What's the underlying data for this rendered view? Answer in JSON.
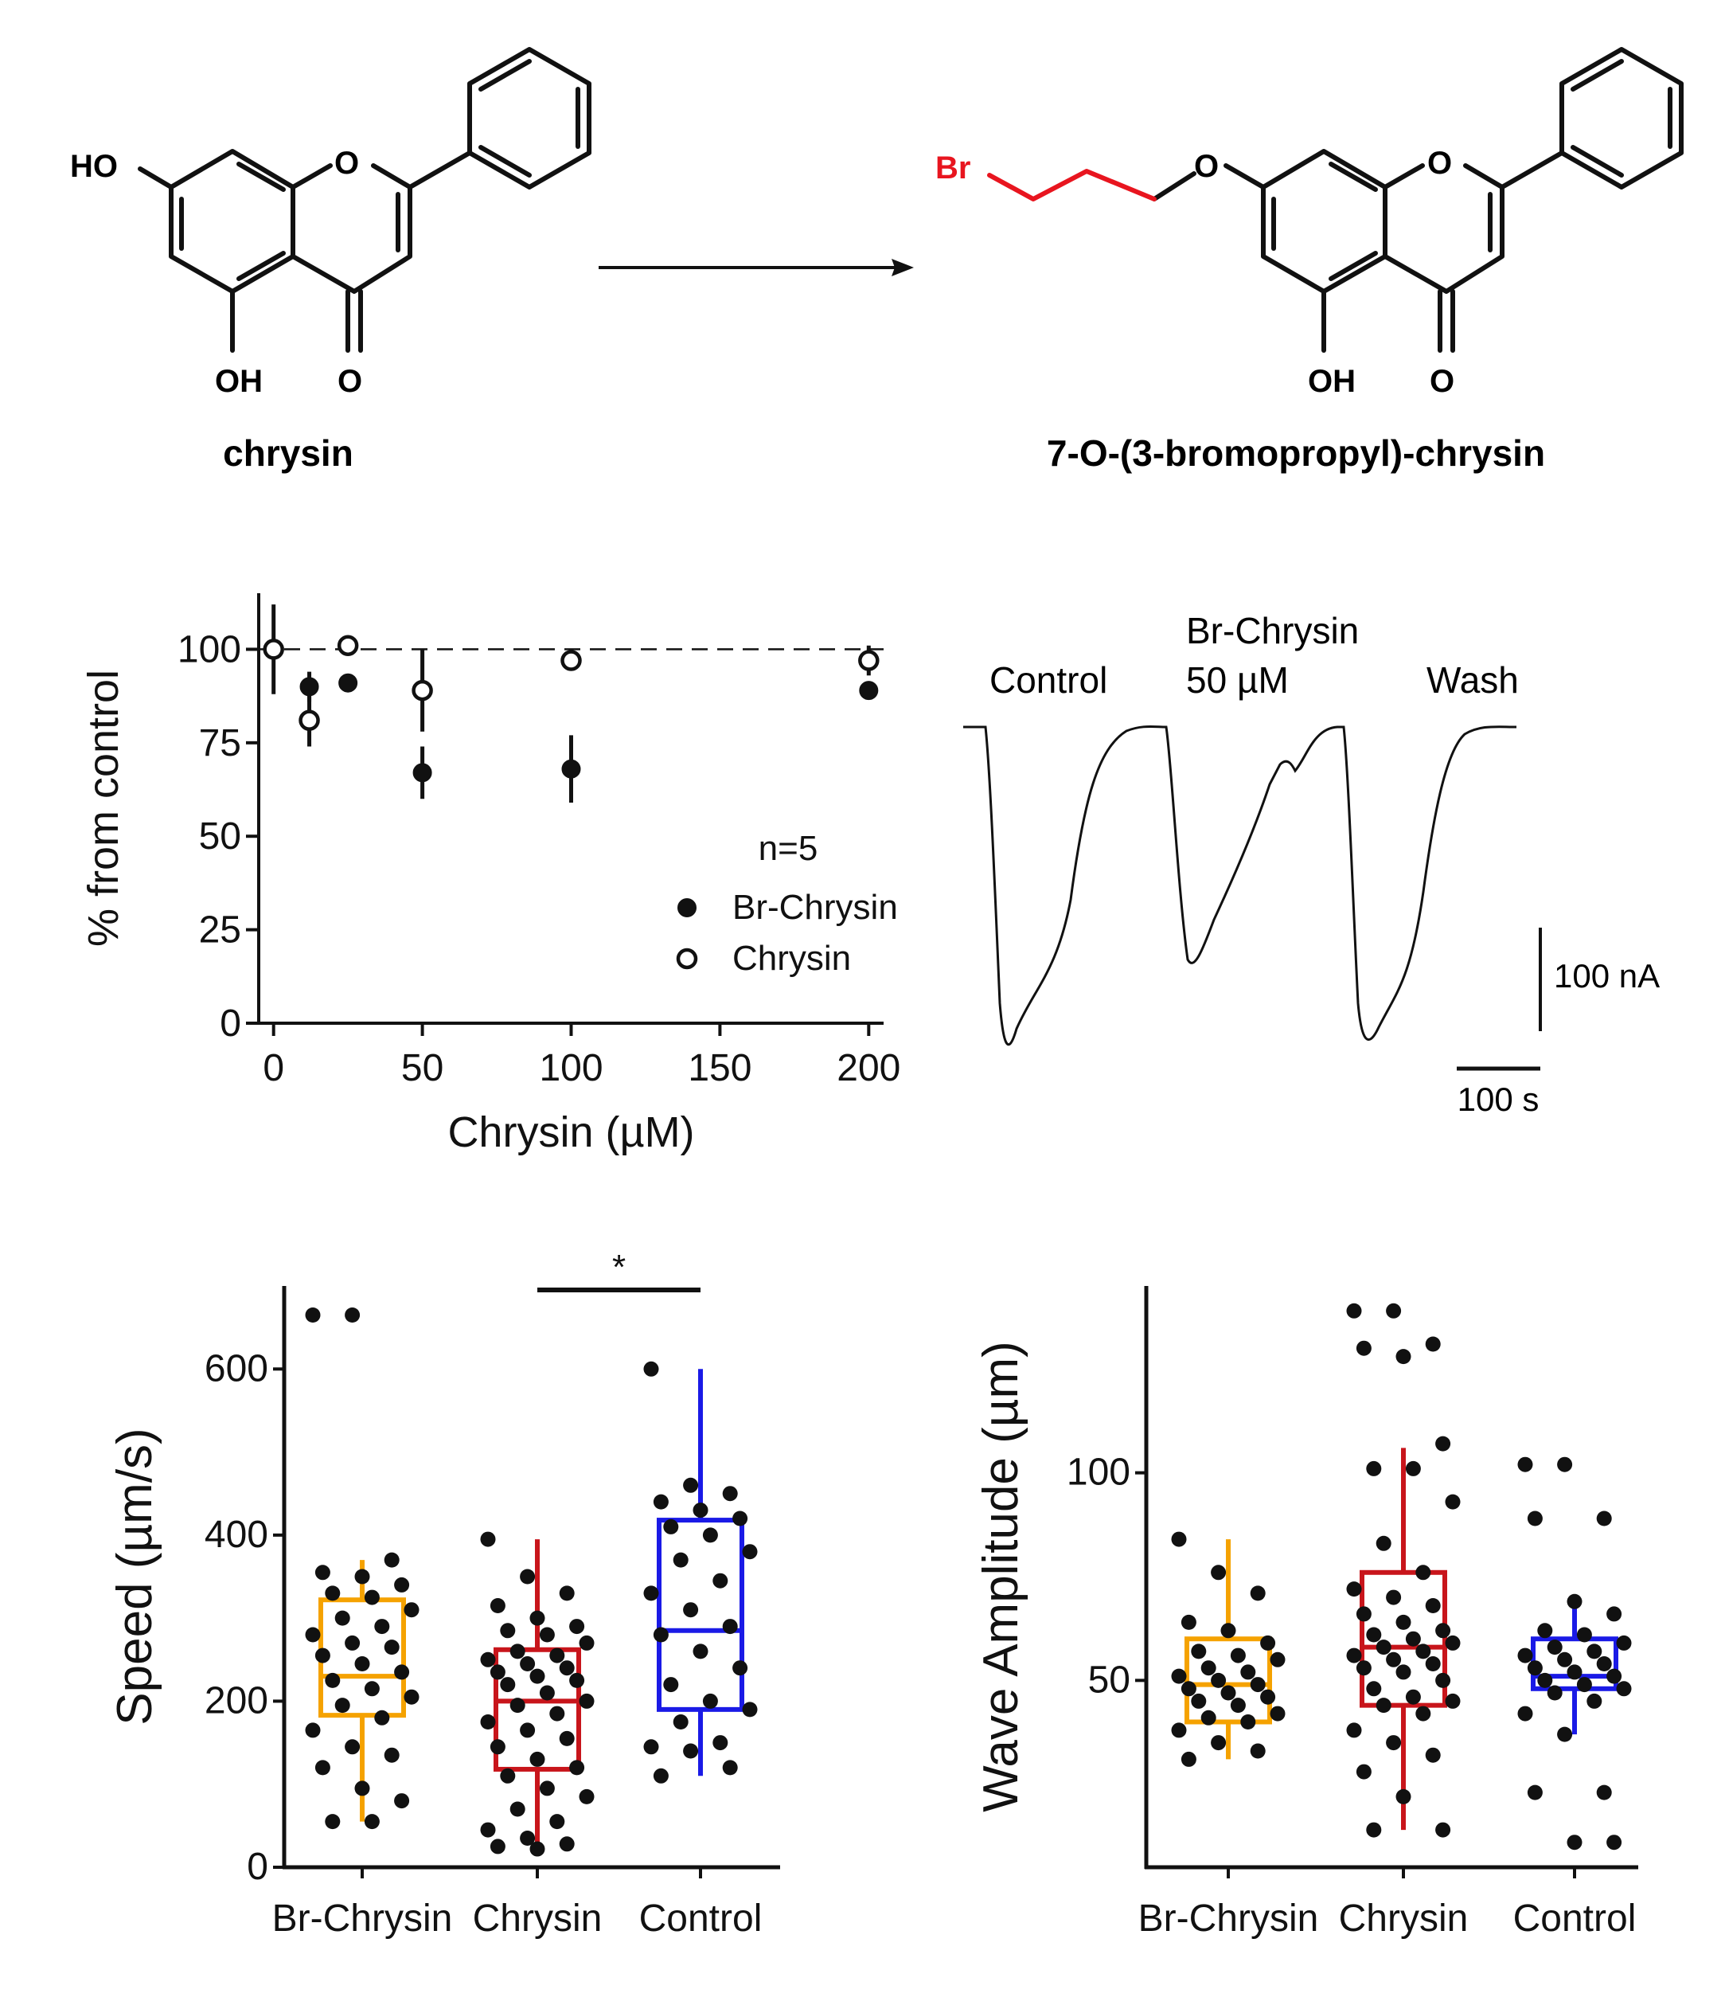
{
  "chemistry": {
    "reactant": {
      "name": "chrysin",
      "atoms": {
        "ho": "HO",
        "o_ring": "O",
        "oh": "OH",
        "o_keto": "O"
      }
    },
    "product": {
      "name": "7-O-(3-bromopropyl)-chrysin",
      "atoms": {
        "br": "Br",
        "o_ether": "O",
        "o_ring": "O",
        "oh": "OH",
        "o_keto": "O"
      },
      "highlight_color": "#e8151f"
    }
  },
  "trace": {
    "labels": {
      "control": "Control",
      "br_line1": "Br-Chrysin",
      "br_line2": "50 µM",
      "wash": "Wash"
    },
    "scalebars": {
      "current": "100 nA",
      "time": "100 s"
    }
  },
  "chart_data": [
    {
      "type": "scatter",
      "id": "dose-response",
      "xlabel": "Chrysin (µM)",
      "ylabel": "% from control",
      "xlim": [
        -5,
        205
      ],
      "ylim": [
        0,
        115
      ],
      "xticks": [
        0,
        50,
        100,
        150,
        200
      ],
      "yticks": [
        0,
        25,
        50,
        75,
        100
      ],
      "reference_line": 100,
      "annotation": "n=5",
      "legend_position": "center-right",
      "series": [
        {
          "name": "Br-Chrysin",
          "marker": "filled",
          "points": [
            {
              "x": 12,
              "y": 90,
              "err": 4
            },
            {
              "x": 25,
              "y": 91,
              "err": 2
            },
            {
              "x": 50,
              "y": 67,
              "err": 7
            },
            {
              "x": 100,
              "y": 68,
              "err": 9
            },
            {
              "x": 200,
              "y": 89,
              "err": 2
            }
          ]
        },
        {
          "name": "Chrysin",
          "marker": "open",
          "points": [
            {
              "x": 0,
              "y": 100,
              "err": 12
            },
            {
              "x": 12,
              "y": 81,
              "err": 7
            },
            {
              "x": 25,
              "y": 101,
              "err": 1
            },
            {
              "x": 50,
              "y": 89,
              "err": 11
            },
            {
              "x": 100,
              "y": 97,
              "err": 1
            },
            {
              "x": 200,
              "y": 97,
              "err": 4
            }
          ]
        }
      ]
    },
    {
      "type": "box",
      "id": "speed",
      "ylabel": "Speed (µm/s)",
      "ylim": [
        0,
        700
      ],
      "yticks": [
        0,
        200,
        400,
        600
      ],
      "categories": [
        "Br-Chrysin",
        "Chrysin",
        "Control"
      ],
      "significance": {
        "from": 1,
        "to": 2,
        "label": "*"
      },
      "boxes": [
        {
          "color": "#f5a200",
          "whisker_low": 55,
          "q1": 183,
          "median": 230,
          "q3": 322,
          "whisker_high": 370,
          "points": [
            665,
            665,
            370,
            355,
            350,
            340,
            330,
            325,
            310,
            300,
            290,
            280,
            270,
            265,
            255,
            245,
            235,
            225,
            215,
            205,
            195,
            180,
            165,
            145,
            135,
            120,
            95,
            80,
            55,
            55
          ]
        },
        {
          "color": "#c8151b",
          "whisker_low": 22,
          "q1": 118,
          "median": 200,
          "q3": 262,
          "whisker_high": 395,
          "points": [
            395,
            350,
            330,
            315,
            300,
            290,
            285,
            280,
            270,
            260,
            255,
            250,
            245,
            240,
            235,
            230,
            225,
            220,
            210,
            200,
            195,
            185,
            175,
            165,
            155,
            145,
            130,
            120,
            110,
            95,
            85,
            70,
            55,
            45,
            35,
            28,
            25,
            22
          ]
        },
        {
          "color": "#1a1ae6",
          "whisker_low": 110,
          "q1": 190,
          "median": 285,
          "q3": 418,
          "whisker_high": 600,
          "points": [
            600,
            460,
            450,
            440,
            430,
            420,
            410,
            400,
            380,
            370,
            345,
            330,
            310,
            290,
            280,
            260,
            240,
            220,
            200,
            190,
            175,
            150,
            145,
            140,
            120,
            110
          ]
        }
      ]
    },
    {
      "type": "box",
      "id": "wave-amplitude",
      "ylabel": "Wave Amplitude (µm)",
      "ylim": [
        5,
        145
      ],
      "yticks": [
        50,
        100
      ],
      "categories": [
        "Br-Chrysin",
        "Chrysin",
        "Control"
      ],
      "boxes": [
        {
          "color": "#f5a200",
          "whisker_low": 31,
          "q1": 40,
          "median": 49,
          "q3": 60,
          "whisker_high": 84,
          "points": [
            84,
            76,
            71,
            64,
            62,
            59,
            57,
            56,
            55,
            53,
            52,
            51,
            50,
            49,
            48,
            47,
            46,
            45,
            44,
            42,
            41,
            40,
            38,
            35,
            33,
            31
          ]
        },
        {
          "color": "#c8151b",
          "whisker_low": 14,
          "q1": 44,
          "median": 58,
          "q3": 76,
          "whisker_high": 106,
          "points": [
            139,
            139,
            131,
            130,
            128,
            107,
            101,
            101,
            93,
            83,
            76,
            72,
            70,
            68,
            66,
            64,
            62,
            61,
            60,
            59,
            58,
            57,
            56,
            55,
            54,
            53,
            52,
            50,
            48,
            46,
            45,
            44,
            42,
            38,
            35,
            32,
            28,
            22,
            14,
            14
          ]
        },
        {
          "color": "#1a1ae6",
          "whisker_low": 37,
          "q1": 48,
          "median": 51,
          "q3": 60,
          "whisker_high": 69,
          "points": [
            102,
            102,
            89,
            89,
            69,
            66,
            62,
            61,
            59,
            58,
            57,
            56,
            55,
            54,
            53,
            52,
            51,
            50,
            49,
            48,
            47,
            45,
            42,
            37,
            23,
            23,
            11,
            11
          ]
        }
      ]
    }
  ]
}
